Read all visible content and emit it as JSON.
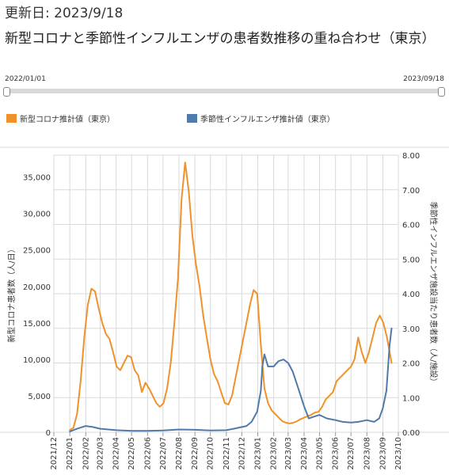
{
  "header": {
    "updated": "更新日: 2023/9/18",
    "title": "新型コロナと季節性インフルエンザの患者数推移の重ね合わせ（東京）"
  },
  "range": {
    "start": "2022/01/01",
    "end": "2023/09/18"
  },
  "colors": {
    "covid": "#f0922b",
    "flu": "#4f7aaa",
    "grid": "#d9d9d9"
  },
  "chart_data": {
    "type": "line",
    "x_start": "2021-12-01",
    "x_end": "2023-10-01",
    "x_tick_labels": [
      "2021/12",
      "2022/01",
      "2022/02",
      "2022/03",
      "2022/04",
      "2022/05",
      "2022/06",
      "2022/07",
      "2022/08",
      "2022/09",
      "2022/10",
      "2022/11",
      "2022/12",
      "2023/01",
      "2023/02",
      "2023/03",
      "2023/04",
      "2023/05",
      "2023/06",
      "2023/07",
      "2023/08",
      "2023/09",
      "2023/10"
    ],
    "y_left": {
      "label": "新型コロナ患者数（人/日）",
      "range": [
        0,
        38000
      ],
      "ticks": [
        0,
        5000,
        10000,
        15000,
        20000,
        25000,
        30000,
        35000
      ],
      "tick_labels": [
        "0",
        "5,000",
        "10,000",
        "15,000",
        "20,000",
        "25,000",
        "30,000",
        "35,000"
      ]
    },
    "y_right": {
      "label": "季節性インフルエンザ施設当たり患者数（人/施設）",
      "range": [
        0,
        8
      ],
      "ticks": [
        0,
        1,
        2,
        3,
        4,
        5,
        6,
        7,
        8
      ],
      "tick_labels": [
        "0.00",
        "1.00",
        "2.00",
        "3.00",
        "4.00",
        "5.00",
        "6.00",
        "7.00",
        "8.00"
      ]
    },
    "series": [
      {
        "name": "新型コロナ推計値（東京）",
        "axis": "left",
        "x": [
          "2022-01-01",
          "2022-01-08",
          "2022-01-15",
          "2022-01-22",
          "2022-01-29",
          "2022-02-05",
          "2022-02-12",
          "2022-02-19",
          "2022-02-26",
          "2022-03-05",
          "2022-03-12",
          "2022-03-19",
          "2022-03-26",
          "2022-04-02",
          "2022-04-09",
          "2022-04-16",
          "2022-04-23",
          "2022-04-30",
          "2022-05-07",
          "2022-05-14",
          "2022-05-21",
          "2022-05-28",
          "2022-06-04",
          "2022-06-11",
          "2022-06-18",
          "2022-06-25",
          "2022-07-02",
          "2022-07-09",
          "2022-07-16",
          "2022-07-23",
          "2022-07-30",
          "2022-08-06",
          "2022-08-13",
          "2022-08-20",
          "2022-08-27",
          "2022-09-03",
          "2022-09-10",
          "2022-09-17",
          "2022-09-24",
          "2022-10-01",
          "2022-10-08",
          "2022-10-15",
          "2022-10-22",
          "2022-10-29",
          "2022-11-05",
          "2022-11-12",
          "2022-11-19",
          "2022-11-26",
          "2022-12-03",
          "2022-12-10",
          "2022-12-17",
          "2022-12-24",
          "2022-12-31",
          "2023-01-07",
          "2023-01-14",
          "2023-01-21",
          "2023-01-28",
          "2023-02-04",
          "2023-02-11",
          "2023-02-18",
          "2023-02-25",
          "2023-03-04",
          "2023-03-11",
          "2023-03-18",
          "2023-03-25",
          "2023-04-01",
          "2023-04-08",
          "2023-04-15",
          "2023-04-22",
          "2023-04-29",
          "2023-05-06",
          "2023-05-13",
          "2023-05-20",
          "2023-05-27",
          "2023-06-03",
          "2023-06-10",
          "2023-06-17",
          "2023-06-24",
          "2023-07-01",
          "2023-07-08",
          "2023-07-15",
          "2023-07-22",
          "2023-07-29",
          "2023-08-05",
          "2023-08-12",
          "2023-08-19",
          "2023-08-26",
          "2023-09-02",
          "2023-09-09",
          "2023-09-18"
        ],
        "y": [
          300,
          600,
          2500,
          7000,
          13000,
          17500,
          19700,
          19300,
          17000,
          15000,
          13500,
          12800,
          11000,
          9000,
          8500,
          9500,
          10500,
          10300,
          8500,
          7800,
          5500,
          6800,
          6000,
          5000,
          4000,
          3500,
          4000,
          6000,
          9500,
          15000,
          21000,
          32000,
          37000,
          33000,
          27000,
          23000,
          20000,
          16000,
          13000,
          10000,
          8000,
          7000,
          5500,
          4000,
          3800,
          5000,
          7500,
          10000,
          12500,
          15000,
          17500,
          19500,
          19000,
          12000,
          6000,
          4000,
          3000,
          2500,
          2000,
          1500,
          1300,
          1200,
          1300,
          1500,
          1800,
          2000,
          2200,
          2400,
          2700,
          2800,
          3500,
          4500,
          5000,
          5500,
          7000,
          7500,
          8000,
          8500,
          9000,
          10000,
          13000,
          11000,
          9500,
          11000,
          13000,
          15000,
          16000,
          15000,
          13000,
          9500
        ]
      },
      {
        "name": "季節性インフルエンザ推計値（東京）",
        "axis": "right",
        "x": [
          "2022-01-01",
          "2022-01-15",
          "2022-02-01",
          "2022-02-15",
          "2022-03-01",
          "2022-04-01",
          "2022-05-01",
          "2022-06-01",
          "2022-07-01",
          "2022-08-01",
          "2022-09-01",
          "2022-10-01",
          "2022-11-01",
          "2022-11-15",
          "2022-12-01",
          "2022-12-10",
          "2022-12-20",
          "2022-12-31",
          "2023-01-07",
          "2023-01-10",
          "2023-01-14",
          "2023-01-21",
          "2023-02-01",
          "2023-02-10",
          "2023-02-20",
          "2023-03-01",
          "2023-03-10",
          "2023-03-20",
          "2023-04-01",
          "2023-04-10",
          "2023-04-20",
          "2023-05-01",
          "2023-05-15",
          "2023-06-01",
          "2023-06-15",
          "2023-07-01",
          "2023-07-15",
          "2023-08-01",
          "2023-08-15",
          "2023-08-25",
          "2023-09-01",
          "2023-09-08",
          "2023-09-14",
          "2023-09-18"
        ],
        "y": [
          0.02,
          0.1,
          0.18,
          0.15,
          0.1,
          0.06,
          0.04,
          0.04,
          0.05,
          0.08,
          0.07,
          0.05,
          0.06,
          0.1,
          0.15,
          0.18,
          0.3,
          0.6,
          1.2,
          1.9,
          2.25,
          1.9,
          1.9,
          2.05,
          2.1,
          2.0,
          1.75,
          1.3,
          0.75,
          0.4,
          0.45,
          0.5,
          0.4,
          0.35,
          0.3,
          0.28,
          0.3,
          0.35,
          0.3,
          0.4,
          0.7,
          1.2,
          2.5,
          3.0
        ]
      }
    ]
  }
}
